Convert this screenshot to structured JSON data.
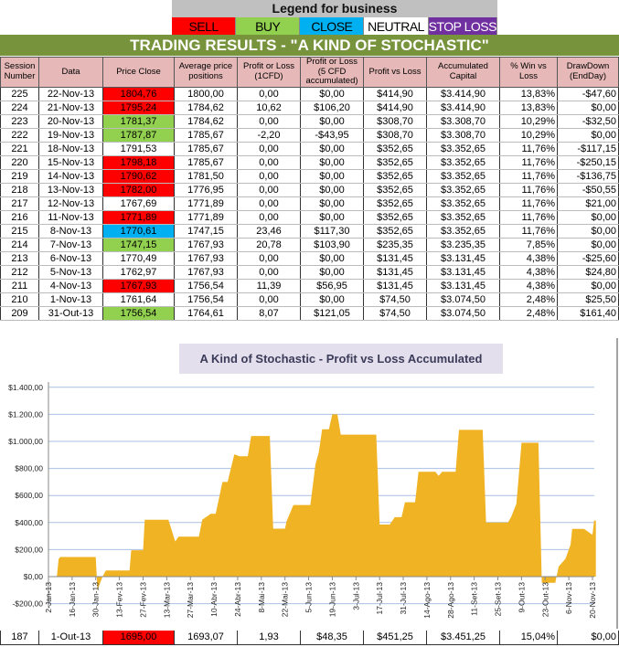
{
  "legend": {
    "title": "Legend for business",
    "items": [
      {
        "label": "SELL",
        "bg": "#ff0000",
        "fg": "#000"
      },
      {
        "label": "BUY",
        "bg": "#92d050",
        "fg": "#000"
      },
      {
        "label": "CLOSE",
        "bg": "#00b0f0",
        "fg": "#000"
      },
      {
        "label": "NEUTRAL",
        "bg": "#ffffff",
        "fg": "#000"
      },
      {
        "label": "STOP LOSS",
        "bg": "#7030a0",
        "fg": "#fff"
      }
    ]
  },
  "banner": "TRADING RESULTS - \"A KIND OF STOCHASTIC\"",
  "columns": [
    "Session Number",
    "Data",
    "Price Close",
    "Average price positions",
    "Profit or Loss (1CFD)",
    "Profit or Loss (5 CFD accumulated)",
    "Profit vs Loss",
    "Accumulated Capital",
    "% Win vs Loss",
    "DrawDown (EndDay)"
  ],
  "signal_colors": {
    "sell": "#ff0000",
    "buy": "#92d050",
    "close": "#00b0f0",
    "neutral": "#ffffff"
  },
  "rows": [
    [
      "225",
      "22-Nov-13",
      "1804,76",
      "1800,00",
      "0,00",
      "$0,00",
      "$414,90",
      "$3.414,90",
      "13,83%",
      "-$47,60",
      "sell"
    ],
    [
      "224",
      "21-Nov-13",
      "1795,24",
      "1784,62",
      "10,62",
      "$106,20",
      "$414,90",
      "$3.414,90",
      "13,83%",
      "$0,00",
      "sell"
    ],
    [
      "223",
      "20-Nov-13",
      "1781,37",
      "1784,62",
      "0,00",
      "$0,00",
      "$308,70",
      "$3.308,70",
      "10,29%",
      "-$32,50",
      "buy"
    ],
    [
      "222",
      "19-Nov-13",
      "1787,87",
      "1785,67",
      "-2,20",
      "-$43,95",
      "$308,70",
      "$3.308,70",
      "10,29%",
      "$0,00",
      "buy"
    ],
    [
      "221",
      "18-Nov-13",
      "1791,53",
      "1785,67",
      "0,00",
      "$0,00",
      "$352,65",
      "$3.352,65",
      "11,76%",
      "-$117,15",
      "neutral"
    ],
    [
      "220",
      "15-Nov-13",
      "1798,18",
      "1785,67",
      "0,00",
      "$0,00",
      "$352,65",
      "$3.352,65",
      "11,76%",
      "-$250,15",
      "sell"
    ],
    [
      "219",
      "14-Nov-13",
      "1790,62",
      "1781,50",
      "0,00",
      "$0,00",
      "$352,65",
      "$3.352,65",
      "11,76%",
      "-$136,75",
      "sell"
    ],
    [
      "218",
      "13-Nov-13",
      "1782,00",
      "1776,95",
      "0,00",
      "$0,00",
      "$352,65",
      "$3.352,65",
      "11,76%",
      "-$50,55",
      "sell"
    ],
    [
      "217",
      "12-Nov-13",
      "1767,69",
      "1771,89",
      "0,00",
      "$0,00",
      "$352,65",
      "$3.352,65",
      "11,76%",
      "$21,00",
      "neutral"
    ],
    [
      "216",
      "11-Nov-13",
      "1771,89",
      "1771,89",
      "0,00",
      "$0,00",
      "$352,65",
      "$3.352,65",
      "11,76%",
      "$0,00",
      "sell"
    ],
    [
      "215",
      "8-Nov-13",
      "1770,61",
      "1747,15",
      "23,46",
      "$117,30",
      "$352,65",
      "$3.352,65",
      "11,76%",
      "$0,00",
      "close"
    ],
    [
      "214",
      "7-Nov-13",
      "1747,15",
      "1767,93",
      "20,78",
      "$103,90",
      "$235,35",
      "$3.235,35",
      "7,85%",
      "$0,00",
      "buy"
    ],
    [
      "213",
      "6-Nov-13",
      "1770,49",
      "1767,93",
      "0,00",
      "$0,00",
      "$131,45",
      "$3.131,45",
      "4,38%",
      "-$25,60",
      "neutral"
    ],
    [
      "212",
      "5-Nov-13",
      "1762,97",
      "1767,93",
      "0,00",
      "$0,00",
      "$131,45",
      "$3.131,45",
      "4,38%",
      "$24,80",
      "neutral"
    ],
    [
      "211",
      "4-Nov-13",
      "1767,93",
      "1756,54",
      "11,39",
      "$56,95",
      "$131,45",
      "$3.131,45",
      "4,38%",
      "$0,00",
      "sell"
    ],
    [
      "210",
      "1-Nov-13",
      "1761,64",
      "1756,54",
      "0,00",
      "$0,00",
      "$74,50",
      "$3.074,50",
      "2,48%",
      "$25,50",
      "neutral"
    ],
    [
      "209",
      "31-Out-13",
      "1756,54",
      "1764,61",
      "8,07",
      "$121,05",
      "$74,50",
      "$3.074,50",
      "2,48%",
      "$161,40",
      "buy"
    ]
  ],
  "bottom_row": [
    "187",
    "1-Out-13",
    "1695,00",
    "1693,07",
    "1,93",
    "$48,35",
    "$451,25",
    "$3.451,25",
    "15,04%",
    "$0,00",
    "sell"
  ],
  "chart_data": {
    "type": "area",
    "title": "A Kind of Stochastic - Profit vs Loss Accumulated",
    "color": "#f0b323",
    "grid": true,
    "ylim": [
      -200,
      1400
    ],
    "yticks": [
      "-$200,00",
      "$0,00",
      "$200,00",
      "$400,00",
      "$600,00",
      "$800,00",
      "$1.000,00",
      "$1.200,00",
      "$1.400,00"
    ],
    "ytick_values": [
      -200,
      0,
      200,
      400,
      600,
      800,
      1000,
      1200,
      1400
    ],
    "xlim": [
      "2013-01-02",
      "2013-11-22"
    ],
    "xticks": [
      "2-Jan-13",
      "16-Jan-13",
      "30-Jan-13",
      "13-Fev-13",
      "27-Fev-13",
      "13-Mar-13",
      "27-Mar-13",
      "10-Abr-13",
      "24-Abr-13",
      "8-Mai-13",
      "22-Mai-13",
      "5-Jun-13",
      "19-Jun-13",
      "3-Jul-13",
      "17-Jul-13",
      "31-Jul-13",
      "14-Ago-13",
      "28-Ago-13",
      "11-Set-13",
      "25-Set-13",
      "9-Out-13",
      "23-Out-13",
      "6-Nov-13",
      "20-Nov-13"
    ],
    "x": [
      "2013-01-02",
      "2013-01-07",
      "2013-01-08",
      "2013-01-09",
      "2013-01-30",
      "2013-01-31",
      "2013-02-03",
      "2013-02-05",
      "2013-02-19",
      "2013-02-20",
      "2013-02-27",
      "2013-02-28",
      "2013-03-14",
      "2013-03-18",
      "2013-03-20",
      "2013-04-01",
      "2013-04-03",
      "2013-04-08",
      "2013-04-11",
      "2013-04-15",
      "2013-04-18",
      "2013-04-22",
      "2013-04-25",
      "2013-04-30",
      "2013-05-02",
      "2013-05-13",
      "2013-05-15",
      "2013-05-22",
      "2013-05-23",
      "2013-05-27",
      "2013-06-06",
      "2013-06-09",
      "2013-06-11",
      "2013-06-13",
      "2013-06-17",
      "2013-06-19",
      "2013-06-22",
      "2013-06-24",
      "2013-07-15",
      "2013-07-17",
      "2013-07-23",
      "2013-07-26",
      "2013-07-30",
      "2013-08-01",
      "2013-08-07",
      "2013-08-09",
      "2013-08-19",
      "2013-08-21",
      "2013-08-23",
      "2013-08-31",
      "2013-09-02",
      "2013-09-16",
      "2013-09-18",
      "2013-10-01",
      "2013-10-03",
      "2013-10-06",
      "2013-10-09",
      "2013-10-19",
      "2013-10-21",
      "2013-10-29",
      "2013-10-31",
      "2013-11-04",
      "2013-11-07",
      "2013-11-08",
      "2013-11-15",
      "2013-11-20",
      "2013-11-21",
      "2013-11-22"
    ],
    "y": [
      0,
      0,
      130,
      145,
      145,
      -100,
      0,
      45,
      45,
      195,
      195,
      420,
      420,
      260,
      295,
      295,
      420,
      465,
      465,
      700,
      700,
      905,
      890,
      890,
      1040,
      1040,
      355,
      355,
      410,
      530,
      530,
      830,
      920,
      1090,
      1090,
      1200,
      1200,
      1050,
      1050,
      385,
      385,
      440,
      440,
      550,
      550,
      775,
      775,
      745,
      775,
      775,
      1085,
      1085,
      400,
      400,
      445,
      540,
      990,
      990,
      -45,
      -45,
      74.5,
      131.45,
      235.35,
      352.65,
      352.65,
      308.7,
      414.9,
      414.9
    ]
  }
}
